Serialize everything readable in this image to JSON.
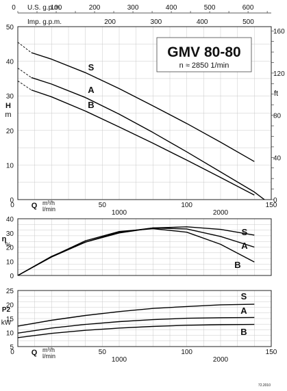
{
  "chart_data": [
    {
      "type": "line",
      "panel": "head",
      "title": "GMV 80-80",
      "subtitle": "n ≈ 2850 1/min",
      "top_axes": [
        {
          "label": "U.S. g.p.m.",
          "ticks": [
            0,
            100,
            200,
            300,
            400,
            500,
            600
          ]
        },
        {
          "label": "Imp. g.p.m.",
          "ticks": [
            200,
            300,
            400,
            500
          ]
        }
      ],
      "bottom_axis": {
        "q_label": "Q",
        "unit_top": "m³/h",
        "unit_bottom": "l/min",
        "q_ticks": [
          0,
          50,
          100,
          150
        ],
        "lmin_ticks": [
          1000,
          2000
        ]
      },
      "ylabel_left": [
        "H",
        "m"
      ],
      "yticks_left": [
        0,
        10,
        20,
        30,
        40,
        50
      ],
      "ylabel_right": "ft",
      "yticks_right": [
        0,
        40,
        80,
        120,
        160
      ],
      "xlim": [
        0,
        150
      ],
      "ylim": [
        0,
        50
      ],
      "grid": true,
      "series": [
        {
          "name": "S",
          "x": [
            8,
            20,
            40,
            60,
            80,
            100,
            120,
            140
          ],
          "y": [
            42.5,
            40.6,
            36.7,
            32.1,
            27.1,
            22.0,
            16.6,
            11.0
          ],
          "dashed_x": [
            0,
            8
          ],
          "dashed_y": [
            45.5,
            42.5
          ]
        },
        {
          "name": "A",
          "x": [
            8,
            20,
            40,
            60,
            80,
            100,
            120,
            140,
            150
          ],
          "y": [
            35.3,
            33.4,
            29.5,
            24.7,
            19.4,
            13.8,
            8.0,
            2.2,
            -1.5
          ],
          "dashed_x": [
            0,
            8
          ],
          "dashed_y": [
            38.0,
            35.3
          ]
        },
        {
          "name": "B",
          "x": [
            8,
            20,
            40,
            60,
            80,
            100,
            120,
            140
          ],
          "y": [
            31.7,
            29.7,
            25.6,
            21.0,
            16.3,
            11.4,
            6.4,
            1.3
          ],
          "dashed_x": [
            0,
            8
          ],
          "dashed_y": [
            34.3,
            31.7
          ]
        }
      ]
    },
    {
      "type": "line",
      "panel": "efficiency",
      "ylabel": [
        "η",
        "%"
      ],
      "yticks": [
        0,
        10,
        20,
        30,
        40
      ],
      "xlim": [
        0,
        150
      ],
      "ylim": [
        0,
        40
      ],
      "grid": true,
      "series": [
        {
          "name": "S",
          "x": [
            0,
            20,
            40,
            60,
            80,
            100,
            120,
            140
          ],
          "y": [
            0,
            13.5,
            23.5,
            30.0,
            33.5,
            34.3,
            32.5,
            28.5
          ]
        },
        {
          "name": "A",
          "x": [
            0,
            20,
            40,
            60,
            80,
            100,
            120,
            140
          ],
          "y": [
            0,
            13.0,
            23.5,
            30.5,
            33.5,
            32.8,
            27.5,
            20.0
          ]
        },
        {
          "name": "B",
          "x": [
            0,
            20,
            40,
            60,
            80,
            100,
            120,
            140
          ],
          "y": [
            0,
            13.3,
            24.5,
            31.0,
            33.0,
            30.5,
            22.0,
            9.5
          ]
        }
      ]
    },
    {
      "type": "line",
      "panel": "power",
      "ylabel": [
        "P2",
        "kW"
      ],
      "yticks": [
        5,
        10,
        15,
        20,
        25
      ],
      "bottom_axis": {
        "q_label": "Q",
        "unit_top": "m³/h",
        "unit_bottom": "l/min",
        "q_ticks": [
          0,
          50,
          100,
          150
        ],
        "lmin_ticks": [
          1000,
          2000
        ]
      },
      "xlim": [
        0,
        150
      ],
      "ylim": [
        5,
        25
      ],
      "grid": true,
      "series": [
        {
          "name": "S",
          "x": [
            0,
            20,
            40,
            60,
            80,
            100,
            120,
            140
          ],
          "y": [
            12.3,
            14.4,
            16.1,
            17.5,
            18.6,
            19.3,
            19.9,
            20.1
          ]
        },
        {
          "name": "A",
          "x": [
            0,
            20,
            40,
            60,
            80,
            100,
            120,
            140
          ],
          "y": [
            9.8,
            11.6,
            12.9,
            13.9,
            14.6,
            15.1,
            15.3,
            15.4
          ]
        },
        {
          "name": "B",
          "x": [
            0,
            20,
            40,
            60,
            80,
            100,
            120,
            140
          ],
          "y": [
            8.2,
            9.7,
            10.8,
            11.6,
            12.2,
            12.6,
            12.8,
            12.9
          ]
        }
      ]
    }
  ],
  "footer_code": "72.2010"
}
